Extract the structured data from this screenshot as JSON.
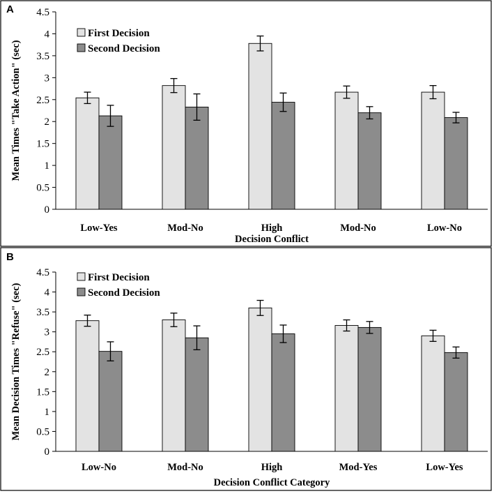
{
  "colors": {
    "first": "#e3e3e3",
    "second": "#8c8c8c"
  },
  "chart_data": [
    {
      "panel": "A",
      "type": "bar",
      "title": "",
      "ylabel": "Mean Times \"Take Action\" (sec)",
      "xlabel": "Decision Conflict",
      "categories": [
        "Low-Yes",
        "Mod-No",
        "High",
        "Mod-No",
        "Low-No"
      ],
      "ylim": [
        0,
        4.5
      ],
      "yticks": [
        0,
        0.5,
        1,
        1.5,
        2,
        2.5,
        3,
        3.5,
        4,
        4.5
      ],
      "ytick_labels": [
        "0",
        "0.5",
        "1",
        "1.5",
        "2",
        "2.5",
        "3",
        "3.5",
        "4",
        "4.5"
      ],
      "legend": {
        "position": "top-left",
        "entries": [
          "First Decision",
          "Second Decision"
        ]
      },
      "series": [
        {
          "name": "First Decision",
          "values": [
            2.54,
            2.82,
            3.78,
            2.67,
            2.67
          ],
          "errors": [
            0.13,
            0.16,
            0.17,
            0.14,
            0.15
          ]
        },
        {
          "name": "Second Decision",
          "values": [
            2.13,
            2.33,
            2.44,
            2.2,
            2.09
          ],
          "errors": [
            0.24,
            0.3,
            0.21,
            0.14,
            0.12
          ]
        }
      ]
    },
    {
      "panel": "B",
      "type": "bar",
      "title": "",
      "ylabel": "Mean Decision Times \"Refuse\" (sec)",
      "xlabel": "Decision Conflict Category",
      "categories": [
        "Low-No",
        "Mod-No",
        "High",
        "Mod-Yes",
        "Low-Yes"
      ],
      "ylim": [
        0,
        4.5
      ],
      "yticks": [
        0,
        0.5,
        1,
        1.5,
        2,
        2.5,
        3,
        3.5,
        4,
        4.5
      ],
      "ytick_labels": [
        "0",
        "0.5",
        "1",
        "1.5",
        "2",
        "2.5",
        "3",
        "3.5",
        "4",
        "4.5"
      ],
      "legend": {
        "position": "top-left",
        "entries": [
          "First Decision",
          "Second Decision"
        ]
      },
      "series": [
        {
          "name": "First Decision",
          "values": [
            3.28,
            3.3,
            3.6,
            3.16,
            2.9
          ],
          "errors": [
            0.14,
            0.17,
            0.19,
            0.14,
            0.14
          ]
        },
        {
          "name": "Second Decision",
          "values": [
            2.51,
            2.85,
            2.95,
            3.11,
            2.48
          ],
          "errors": [
            0.24,
            0.3,
            0.22,
            0.15,
            0.14
          ]
        }
      ]
    }
  ]
}
